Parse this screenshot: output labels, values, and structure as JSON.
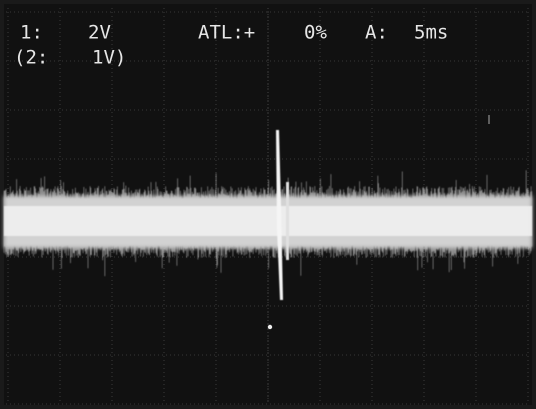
{
  "readout": {
    "line1": {
      "channel": "1:",
      "scale": "2V",
      "trigger": "ATL:+",
      "trigger_level": "0%",
      "timebase_label": "A:",
      "timebase": "5ms"
    },
    "line2": {
      "channel": "(2:",
      "scale": "1V)"
    }
  }
}
